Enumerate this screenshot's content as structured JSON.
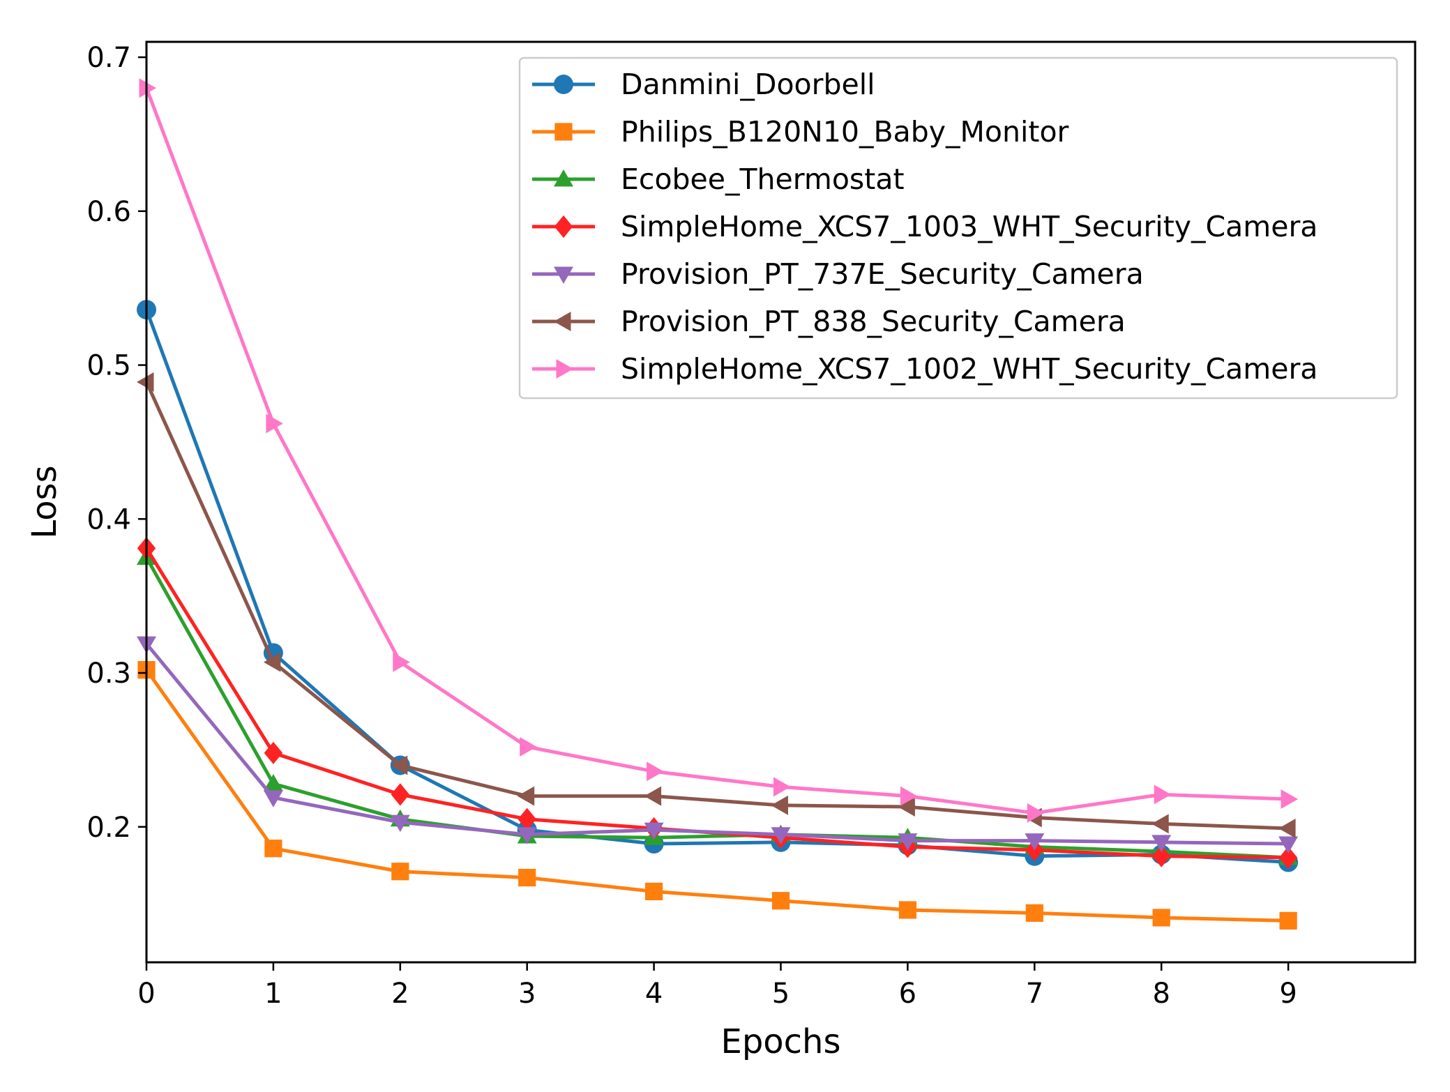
{
  "chart_data": {
    "type": "line",
    "title": "",
    "xlabel": "Epochs",
    "ylabel": "Loss",
    "xlim": [
      0,
      10
    ],
    "ylim": [
      0.112,
      0.71
    ],
    "grid": false,
    "legend_position": "top-right",
    "x": [
      0,
      1,
      2,
      3,
      4,
      5,
      6,
      7,
      8,
      9
    ],
    "x_ticks": [
      "0",
      "1",
      "2",
      "3",
      "4",
      "5",
      "6",
      "7",
      "8",
      "9"
    ],
    "y_ticks": [
      "0.2",
      "0.3",
      "0.4",
      "0.5",
      "0.6",
      "0.7"
    ],
    "series": [
      {
        "name": "Danmini_Doorbell",
        "color": "#1f77b4",
        "marker": "circle",
        "values": [
          0.536,
          0.313,
          0.24,
          0.198,
          0.189,
          0.19,
          0.188,
          0.181,
          0.182,
          0.177
        ]
      },
      {
        "name": "Philips_B120N10_Baby_Monitor",
        "color": "#ff7f0e",
        "marker": "square",
        "values": [
          0.302,
          0.186,
          0.171,
          0.167,
          0.158,
          0.152,
          0.146,
          0.144,
          0.141,
          0.139
        ]
      },
      {
        "name": "Ecobee_Thermostat",
        "color": "#2ca02c",
        "marker": "triangle-up",
        "values": [
          0.375,
          0.228,
          0.205,
          0.194,
          0.193,
          0.195,
          0.193,
          0.187,
          0.184,
          0.18
        ]
      },
      {
        "name": "SimpleHome_XCS7_1003_WHT_Security_Camera",
        "color": "#ff2222",
        "marker": "diamond",
        "values": [
          0.381,
          0.248,
          0.221,
          0.205,
          0.199,
          0.193,
          0.187,
          0.185,
          0.181,
          0.18
        ]
      },
      {
        "name": "Provision_PT_737E_Security_Camera",
        "color": "#9467bd",
        "marker": "triangle-down",
        "values": [
          0.319,
          0.219,
          0.203,
          0.195,
          0.198,
          0.195,
          0.191,
          0.191,
          0.19,
          0.189
        ]
      },
      {
        "name": "Provision_PT_838_Security_Camera",
        "color": "#8c564b",
        "marker": "triangle-left",
        "values": [
          0.489,
          0.307,
          0.24,
          0.22,
          0.22,
          0.214,
          0.213,
          0.206,
          0.202,
          0.199
        ]
      },
      {
        "name": "SimpleHome_XCS7_1002_WHT_Security_Camera",
        "color": "#ff77c8",
        "marker": "triangle-right",
        "values": [
          0.68,
          0.462,
          0.307,
          0.252,
          0.236,
          0.226,
          0.22,
          0.209,
          0.221,
          0.218
        ]
      }
    ]
  }
}
